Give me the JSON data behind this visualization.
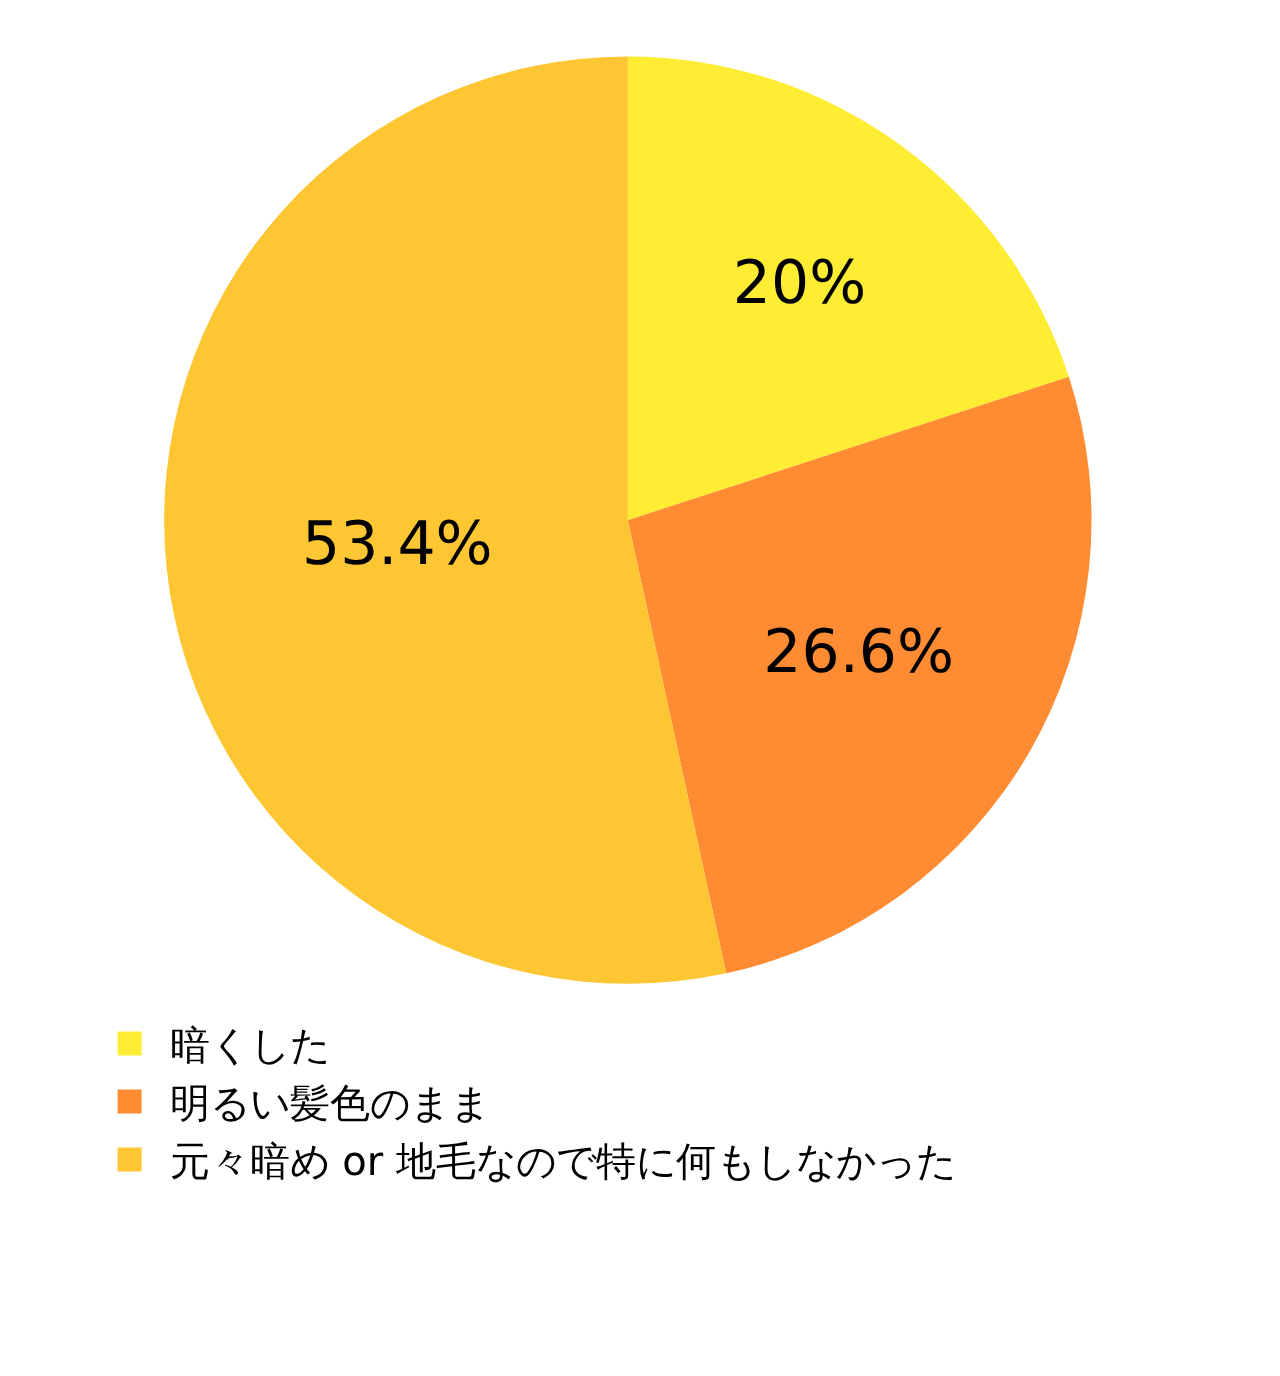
{
  "chart_data": {
    "type": "pie",
    "categories": [
      "暗くした",
      "明るい髪色のまま",
      "元々暗め or 地毛なので特に何もしなかった"
    ],
    "values": [
      20,
      26.6,
      53.4
    ],
    "colors": [
      "#ffed33",
      "#ff8c33",
      "#ffc633"
    ],
    "value_labels": [
      "20%",
      "26.6%",
      "53.4%"
    ],
    "legend": "bottom"
  }
}
